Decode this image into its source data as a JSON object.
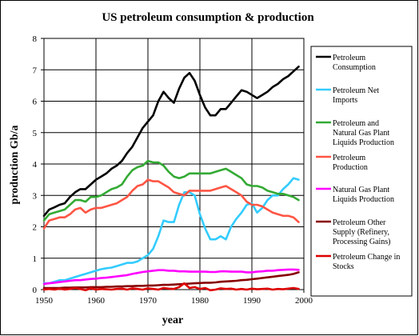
{
  "chart_data": {
    "type": "line",
    "title": "US petroleum consumption & production",
    "xlabel": "year",
    "ylabel": "production Gb/a",
    "xlim": [
      1950,
      2000
    ],
    "ylim": [
      0,
      8
    ],
    "x_ticks": [
      "1950",
      "1960",
      "1970",
      "1980",
      "1990",
      "2000"
    ],
    "y_ticks": [
      "0",
      "1",
      "2",
      "3",
      "4",
      "5",
      "6",
      "7",
      "8"
    ],
    "grid": true,
    "legend_position": "right",
    "x": [
      1950,
      1951,
      1952,
      1953,
      1954,
      1955,
      1956,
      1957,
      1958,
      1959,
      1960,
      1961,
      1962,
      1963,
      1964,
      1965,
      1966,
      1967,
      1968,
      1969,
      1970,
      1971,
      1972,
      1973,
      1974,
      1975,
      1976,
      1977,
      1978,
      1979,
      1980,
      1981,
      1982,
      1983,
      1984,
      1985,
      1986,
      1987,
      1988,
      1989,
      1990,
      1991,
      1992,
      1993,
      1994,
      1995,
      1996,
      1997,
      1998,
      1999
    ],
    "series": [
      {
        "name": "Petroleum Consumption",
        "color": "#000000",
        "values": [
          2.35,
          2.55,
          2.62,
          2.7,
          2.75,
          2.95,
          3.1,
          3.2,
          3.2,
          3.35,
          3.5,
          3.6,
          3.7,
          3.85,
          3.95,
          4.1,
          4.35,
          4.55,
          4.85,
          5.15,
          5.35,
          5.55,
          6.0,
          6.3,
          6.1,
          5.95,
          6.4,
          6.75,
          6.9,
          6.65,
          6.2,
          5.8,
          5.55,
          5.55,
          5.75,
          5.75,
          5.95,
          6.15,
          6.35,
          6.3,
          6.2,
          6.1,
          6.2,
          6.3,
          6.45,
          6.55,
          6.7,
          6.8,
          6.95,
          7.1
        ]
      },
      {
        "name": "Petroleum Net Imports",
        "color": "#33ccff",
        "values": [
          0.2,
          0.2,
          0.25,
          0.3,
          0.3,
          0.35,
          0.4,
          0.45,
          0.5,
          0.55,
          0.6,
          0.65,
          0.68,
          0.7,
          0.75,
          0.8,
          0.85,
          0.85,
          0.9,
          1.0,
          1.1,
          1.3,
          1.7,
          2.2,
          2.15,
          2.15,
          2.7,
          3.1,
          3.1,
          3.0,
          2.4,
          1.95,
          1.6,
          1.6,
          1.7,
          1.6,
          2.0,
          2.25,
          2.45,
          2.7,
          2.75,
          2.45,
          2.6,
          2.85,
          3.0,
          3.0,
          3.2,
          3.35,
          3.55,
          3.5
        ]
      },
      {
        "name": "Petroleum and Natural Gas Plant Liquids Production",
        "color": "#33aa33",
        "values": [
          2.2,
          2.4,
          2.45,
          2.5,
          2.55,
          2.7,
          2.85,
          2.85,
          2.8,
          2.95,
          2.95,
          3.0,
          3.1,
          3.2,
          3.25,
          3.35,
          3.6,
          3.8,
          3.9,
          3.95,
          4.1,
          4.05,
          4.05,
          3.95,
          3.75,
          3.6,
          3.55,
          3.6,
          3.7,
          3.7,
          3.7,
          3.7,
          3.7,
          3.75,
          3.8,
          3.85,
          3.75,
          3.65,
          3.55,
          3.35,
          3.3,
          3.3,
          3.25,
          3.15,
          3.1,
          3.05,
          3.05,
          3.0,
          2.95,
          2.85
        ]
      },
      {
        "name": "Petroleum Production",
        "color": "#ff5544",
        "values": [
          1.95,
          2.2,
          2.25,
          2.3,
          2.3,
          2.4,
          2.55,
          2.6,
          2.45,
          2.55,
          2.6,
          2.6,
          2.65,
          2.7,
          2.75,
          2.85,
          2.95,
          3.15,
          3.3,
          3.35,
          3.5,
          3.45,
          3.45,
          3.35,
          3.25,
          3.1,
          3.05,
          3.0,
          3.15,
          3.15,
          3.15,
          3.15,
          3.15,
          3.2,
          3.25,
          3.3,
          3.2,
          3.1,
          3.0,
          2.8,
          2.7,
          2.7,
          2.65,
          2.55,
          2.45,
          2.4,
          2.35,
          2.35,
          2.3,
          2.15
        ]
      },
      {
        "name": "Natural Gas Plant Liquids Production",
        "color": "#ff00ff",
        "values": [
          0.18,
          0.2,
          0.22,
          0.24,
          0.26,
          0.28,
          0.3,
          0.3,
          0.32,
          0.34,
          0.35,
          0.37,
          0.38,
          0.4,
          0.42,
          0.44,
          0.46,
          0.5,
          0.53,
          0.56,
          0.58,
          0.6,
          0.62,
          0.62,
          0.6,
          0.6,
          0.58,
          0.58,
          0.57,
          0.57,
          0.57,
          0.57,
          0.56,
          0.56,
          0.58,
          0.58,
          0.57,
          0.57,
          0.57,
          0.55,
          0.55,
          0.57,
          0.58,
          0.6,
          0.6,
          0.62,
          0.63,
          0.64,
          0.64,
          0.63
        ]
      },
      {
        "name": "Petroleum Other Supply (Refinery, Processing Gains)",
        "color": "#880000",
        "values": [
          0.05,
          0.05,
          0.05,
          0.05,
          0.06,
          0.06,
          0.07,
          0.07,
          0.07,
          0.08,
          0.08,
          0.08,
          0.09,
          0.09,
          0.1,
          0.1,
          0.11,
          0.11,
          0.12,
          0.12,
          0.13,
          0.13,
          0.14,
          0.15,
          0.15,
          0.16,
          0.17,
          0.18,
          0.19,
          0.2,
          0.21,
          0.22,
          0.22,
          0.23,
          0.25,
          0.26,
          0.27,
          0.28,
          0.3,
          0.31,
          0.33,
          0.35,
          0.37,
          0.39,
          0.41,
          0.43,
          0.45,
          0.47,
          0.5,
          0.55
        ]
      },
      {
        "name": "Petroleum Change in Stocks",
        "color": "#dd0000",
        "values": [
          0.0,
          0.02,
          0.0,
          0.03,
          0.0,
          0.02,
          0.05,
          0.02,
          -0.02,
          0.04,
          0.0,
          0.02,
          0.01,
          0.0,
          0.02,
          0.03,
          0.0,
          0.04,
          0.02,
          0.0,
          0.04,
          0.02,
          0.0,
          0.05,
          0.03,
          0.02,
          0.08,
          0.2,
          0.05,
          0.08,
          0.02,
          0.05,
          -0.02,
          0.0,
          0.04,
          0.02,
          0.03,
          0.0,
          0.02,
          0.0,
          0.03,
          0.01,
          0.02,
          0.03,
          0.0,
          0.02,
          0.01,
          0.03,
          0.05,
          0.02
        ]
      }
    ],
    "legend": [
      {
        "lines": [
          "Petroleum",
          "Consumption"
        ],
        "color": "#000000"
      },
      {
        "lines": [
          "Petroleum Net",
          "Imports"
        ],
        "color": "#33ccff"
      },
      {
        "lines": [
          "Petroleum and",
          "Natural Gas Plant",
          "Liquids Production"
        ],
        "color": "#33aa33"
      },
      {
        "lines": [
          "Petroleum",
          "Production"
        ],
        "color": "#ff5544"
      },
      {
        "lines": [
          "Natural Gas Plant",
          "Liquids Production"
        ],
        "color": "#ff00ff"
      },
      {
        "lines": [
          "Petroleum Other",
          "Supply (Refinery,",
          "Processing Gains)"
        ],
        "color": "#880000"
      },
      {
        "lines": [
          "Petroleum Change in",
          "Stocks"
        ],
        "color": "#dd0000"
      }
    ]
  }
}
